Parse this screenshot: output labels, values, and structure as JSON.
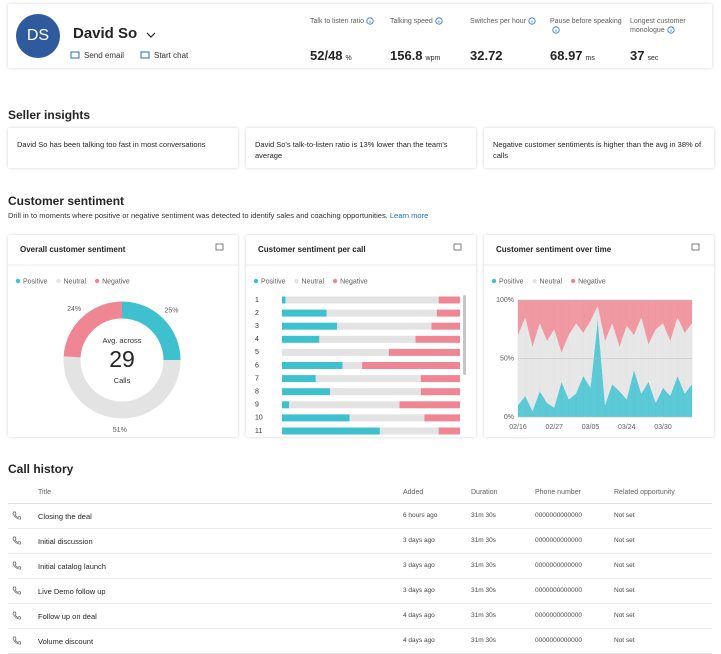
{
  "header": {
    "initials": "DS",
    "name": "David So",
    "actions": [
      "Send email",
      "Start chat"
    ],
    "metrics": [
      {
        "label": "Talk to listen ratio",
        "value": "52/48",
        "unit": "%"
      },
      {
        "label": "Talking speed",
        "value": 156.8,
        "unit": "wpm"
      },
      {
        "label": "Switches per hour",
        "value": 32.72
      },
      {
        "label": "Pause before speaking",
        "value": 68.97,
        "unit": "ms"
      },
      {
        "label": "Longest customer monologue",
        "value": 37,
        "unit": "sec"
      }
    ]
  },
  "seller_insights": {
    "title": "Seller insights",
    "cards": [
      "David So has been talking too fast in most conversations",
      "David So's talk-to-listen ratio is 13% lower than the team's average",
      "Negative customer sentiments is higher than the avg in 38% of calls"
    ]
  },
  "customer_sentiment": {
    "title": "Customer sentiment",
    "description": "Drill in to moments where positive or negative sentiment was detected to identify sales and coaching opportunities.",
    "link": "Learn more"
  },
  "chart_data": [
    {
      "type": "donut",
      "title": "Overall customer sentiment",
      "categories": [
        "Positive",
        "Neutral",
        "Negative"
      ],
      "values": [
        25,
        51,
        24
      ],
      "value_labels": [
        "25%",
        "51%",
        "24%"
      ],
      "colors": [
        "#3ec0cf",
        "#e3e3e3",
        "#ee8793"
      ],
      "center_label": "Avg. across",
      "center_value": 29,
      "center_unit": "Calls"
    },
    {
      "type": "stacked-bar",
      "title": "Customer sentiment per call",
      "categories": [
        "1",
        "2",
        "3",
        "4",
        "5",
        "6",
        "7",
        "8",
        "9",
        "10",
        "11"
      ],
      "series": [
        {
          "name": "Positive",
          "color": "#3ec0cf",
          "values": [
            2,
            25,
            31,
            21,
            0,
            34,
            19,
            27,
            4,
            38,
            55
          ]
        },
        {
          "name": "Neutral",
          "color": "#e3e3e3",
          "values": [
            86,
            62,
            53,
            54,
            60,
            11,
            59,
            51,
            62,
            42,
            33
          ]
        },
        {
          "name": "Negative",
          "color": "#ee8793",
          "values": [
            12,
            13,
            16,
            25,
            40,
            55,
            22,
            22,
            34,
            20,
            12
          ]
        }
      ]
    },
    {
      "type": "stacked-area",
      "title": "Customer sentiment over time",
      "categories": [
        "02/16",
        null,
        null,
        null,
        null,
        "02/27",
        null,
        null,
        null,
        null,
        "03/05",
        null,
        null,
        null,
        null,
        "03/24",
        null,
        null,
        null,
        null,
        "03/30",
        null,
        null,
        null,
        null
      ],
      "series": [
        {
          "name": "Positive",
          "color": "#3ec0cf",
          "values": [
            10,
            18,
            5,
            22,
            12,
            8,
            30,
            15,
            20,
            35,
            25,
            83,
            10,
            28,
            22,
            15,
            40,
            20,
            30,
            12,
            25,
            18,
            35,
            20,
            28
          ]
        },
        {
          "name": "Neutral",
          "color": "#e3e3e3",
          "values": [
            60,
            67,
            55,
            58,
            53,
            67,
            25,
            55,
            60,
            37,
            57,
            12,
            55,
            52,
            38,
            63,
            30,
            65,
            32,
            63,
            55,
            47,
            50,
            52,
            52
          ]
        },
        {
          "name": "Negative",
          "color": "#ee8793",
          "values": [
            30,
            15,
            40,
            20,
            35,
            25,
            45,
            30,
            20,
            28,
            18,
            5,
            35,
            20,
            40,
            22,
            30,
            15,
            38,
            25,
            20,
            35,
            15,
            28,
            20
          ]
        }
      ],
      "ylim": [
        0,
        100
      ],
      "yticks": [
        {
          "value": 0,
          "label": "0%"
        },
        {
          "value": 50,
          "label": "50%"
        },
        {
          "value": 100,
          "label": "100%"
        }
      ],
      "grid": true
    }
  ],
  "call_history": {
    "title": "Call history",
    "columns": [
      "Title",
      "Added",
      "Duration",
      "Phone number",
      "Related opportunity"
    ],
    "rows": [
      [
        "Closing the deal",
        "6 hours ago",
        "31m 30s",
        "0000000000000",
        "Not set"
      ],
      [
        "Initial discussion",
        "3 days ago",
        "31m 30s",
        "0000000000000",
        "Not set"
      ],
      [
        "Initial catalog launch",
        "3 days ago",
        "31m 30s",
        "0000000000000",
        "Not set"
      ],
      [
        "Live Demo follow up",
        "3 days ago",
        "31m 30s",
        "0000000000000",
        "Not set"
      ],
      [
        "Follow up on deal",
        "4 days ago",
        "31m 30s",
        "0000000000000",
        "Not set"
      ],
      [
        "Volume discount",
        "4 days ago",
        "31m 30s",
        "0000000000000",
        "Not set"
      ]
    ]
  }
}
